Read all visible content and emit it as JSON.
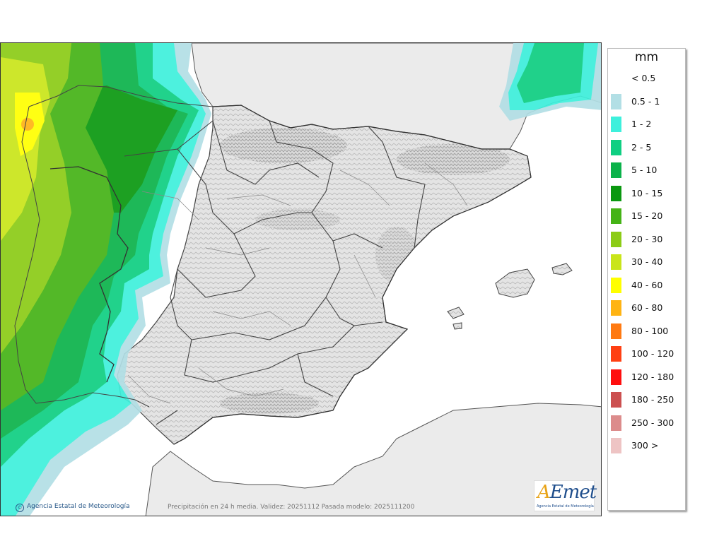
{
  "legend": {
    "unit": "mm",
    "items": [
      {
        "label": "< 0.5",
        "color": "#ffffff"
      },
      {
        "label": "0.5 - 1",
        "color": "#b2dfe5"
      },
      {
        "label": "1 - 2",
        "color": "#3ef0dc"
      },
      {
        "label": "2 - 5",
        "color": "#0fcf82"
      },
      {
        "label": "5 - 10",
        "color": "#0bb24a"
      },
      {
        "label": "10 - 15",
        "color": "#0a9810"
      },
      {
        "label": "15 - 20",
        "color": "#45b316"
      },
      {
        "label": "20 - 30",
        "color": "#8ccc16"
      },
      {
        "label": "30 - 40",
        "color": "#c9e51a"
      },
      {
        "label": "40 - 60",
        "color": "#ffff00"
      },
      {
        "label": "60 - 80",
        "color": "#ffb413"
      },
      {
        "label": "80 - 100",
        "color": "#ff7a12"
      },
      {
        "label": "100 - 120",
        "color": "#ff4013"
      },
      {
        "label": "120 - 180",
        "color": "#ff0e0e"
      },
      {
        "label": "180 - 250",
        "color": "#cc5050"
      },
      {
        "label": "250 - 300",
        "color": "#dc8c8c"
      },
      {
        "label": "300 >",
        "color": "#eec4c4"
      }
    ]
  },
  "footer": {
    "credit": "Agencia Estatal de Meteorología",
    "validity": "Precipitación en 24 h media. Validez: 20251112 Pasada modelo: 2025111200"
  },
  "logo": {
    "mark_a": "A",
    "mark_rest": "Emet",
    "subtitle": "Agencia Estatal de Meteorología"
  }
}
